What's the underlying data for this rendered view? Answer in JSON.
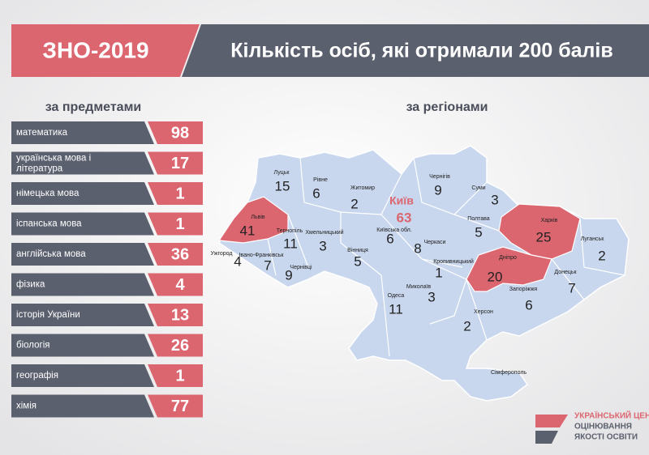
{
  "header": {
    "badge": "ЗНО-2019",
    "title": "Кількість осіб, які отримали 200 балів"
  },
  "subjects": {
    "heading": "за предметами",
    "rows": [
      {
        "label": "математика",
        "value": "98"
      },
      {
        "label": "українська мова і література",
        "value": "17"
      },
      {
        "label": "німецька мова",
        "value": "1"
      },
      {
        "label": "іспанська мова",
        "value": "1"
      },
      {
        "label": "англійська мова",
        "value": "36"
      },
      {
        "label": "фізика",
        "value": "4"
      },
      {
        "label": "історія України",
        "value": "13"
      },
      {
        "label": "біологія",
        "value": "26"
      },
      {
        "label": "географія",
        "value": "1"
      },
      {
        "label": "хімія",
        "value": "77"
      }
    ]
  },
  "regions": {
    "heading": "за регіонами",
    "highlight_color": "#dc6670",
    "base_color": "#c8d7ee",
    "items": [
      {
        "name": "Луцьк",
        "value": "15"
      },
      {
        "name": "Рівне",
        "value": "6"
      },
      {
        "name": "Житомир",
        "value": "2"
      },
      {
        "name": "Чернігів",
        "value": "9"
      },
      {
        "name": "Суми",
        "value": "3"
      },
      {
        "name": "Київ",
        "value": "63",
        "text_highlight": true
      },
      {
        "name": "Київська обл.",
        "value": "6"
      },
      {
        "name": "Полтава",
        "value": "5"
      },
      {
        "name": "Харків",
        "value": "25",
        "highlight": true
      },
      {
        "name": "Луганськ",
        "value": "2"
      },
      {
        "name": "Львів",
        "value": "41",
        "highlight": true
      },
      {
        "name": "Тернопіль",
        "value": "11"
      },
      {
        "name": "Хмельницький",
        "value": "3"
      },
      {
        "name": "Вінниця",
        "value": "5"
      },
      {
        "name": "Черкаси",
        "value": "8"
      },
      {
        "name": "Ужгород",
        "value": "4"
      },
      {
        "name": "Івано-Франківськ",
        "value": "7"
      },
      {
        "name": "Чернівці",
        "value": "9"
      },
      {
        "name": "Кропивницький",
        "value": "1"
      },
      {
        "name": "Миколаїв",
        "value": "3"
      },
      {
        "name": "Одеса",
        "value": "11"
      },
      {
        "name": "Дніпро",
        "value": "20",
        "highlight": true
      },
      {
        "name": "Запоріжжя",
        "value": "6"
      },
      {
        "name": "Донецьк",
        "value": "7"
      },
      {
        "name": "Херсон",
        "value": "2"
      },
      {
        "name": "Сімферополь"
      }
    ]
  },
  "logo": {
    "line1": "УКРАЇНСЬКИЙ ЦЕНТР",
    "line2": "ОЦІНЮВАННЯ",
    "line3": "ЯКОСТІ ОСВІТИ"
  }
}
